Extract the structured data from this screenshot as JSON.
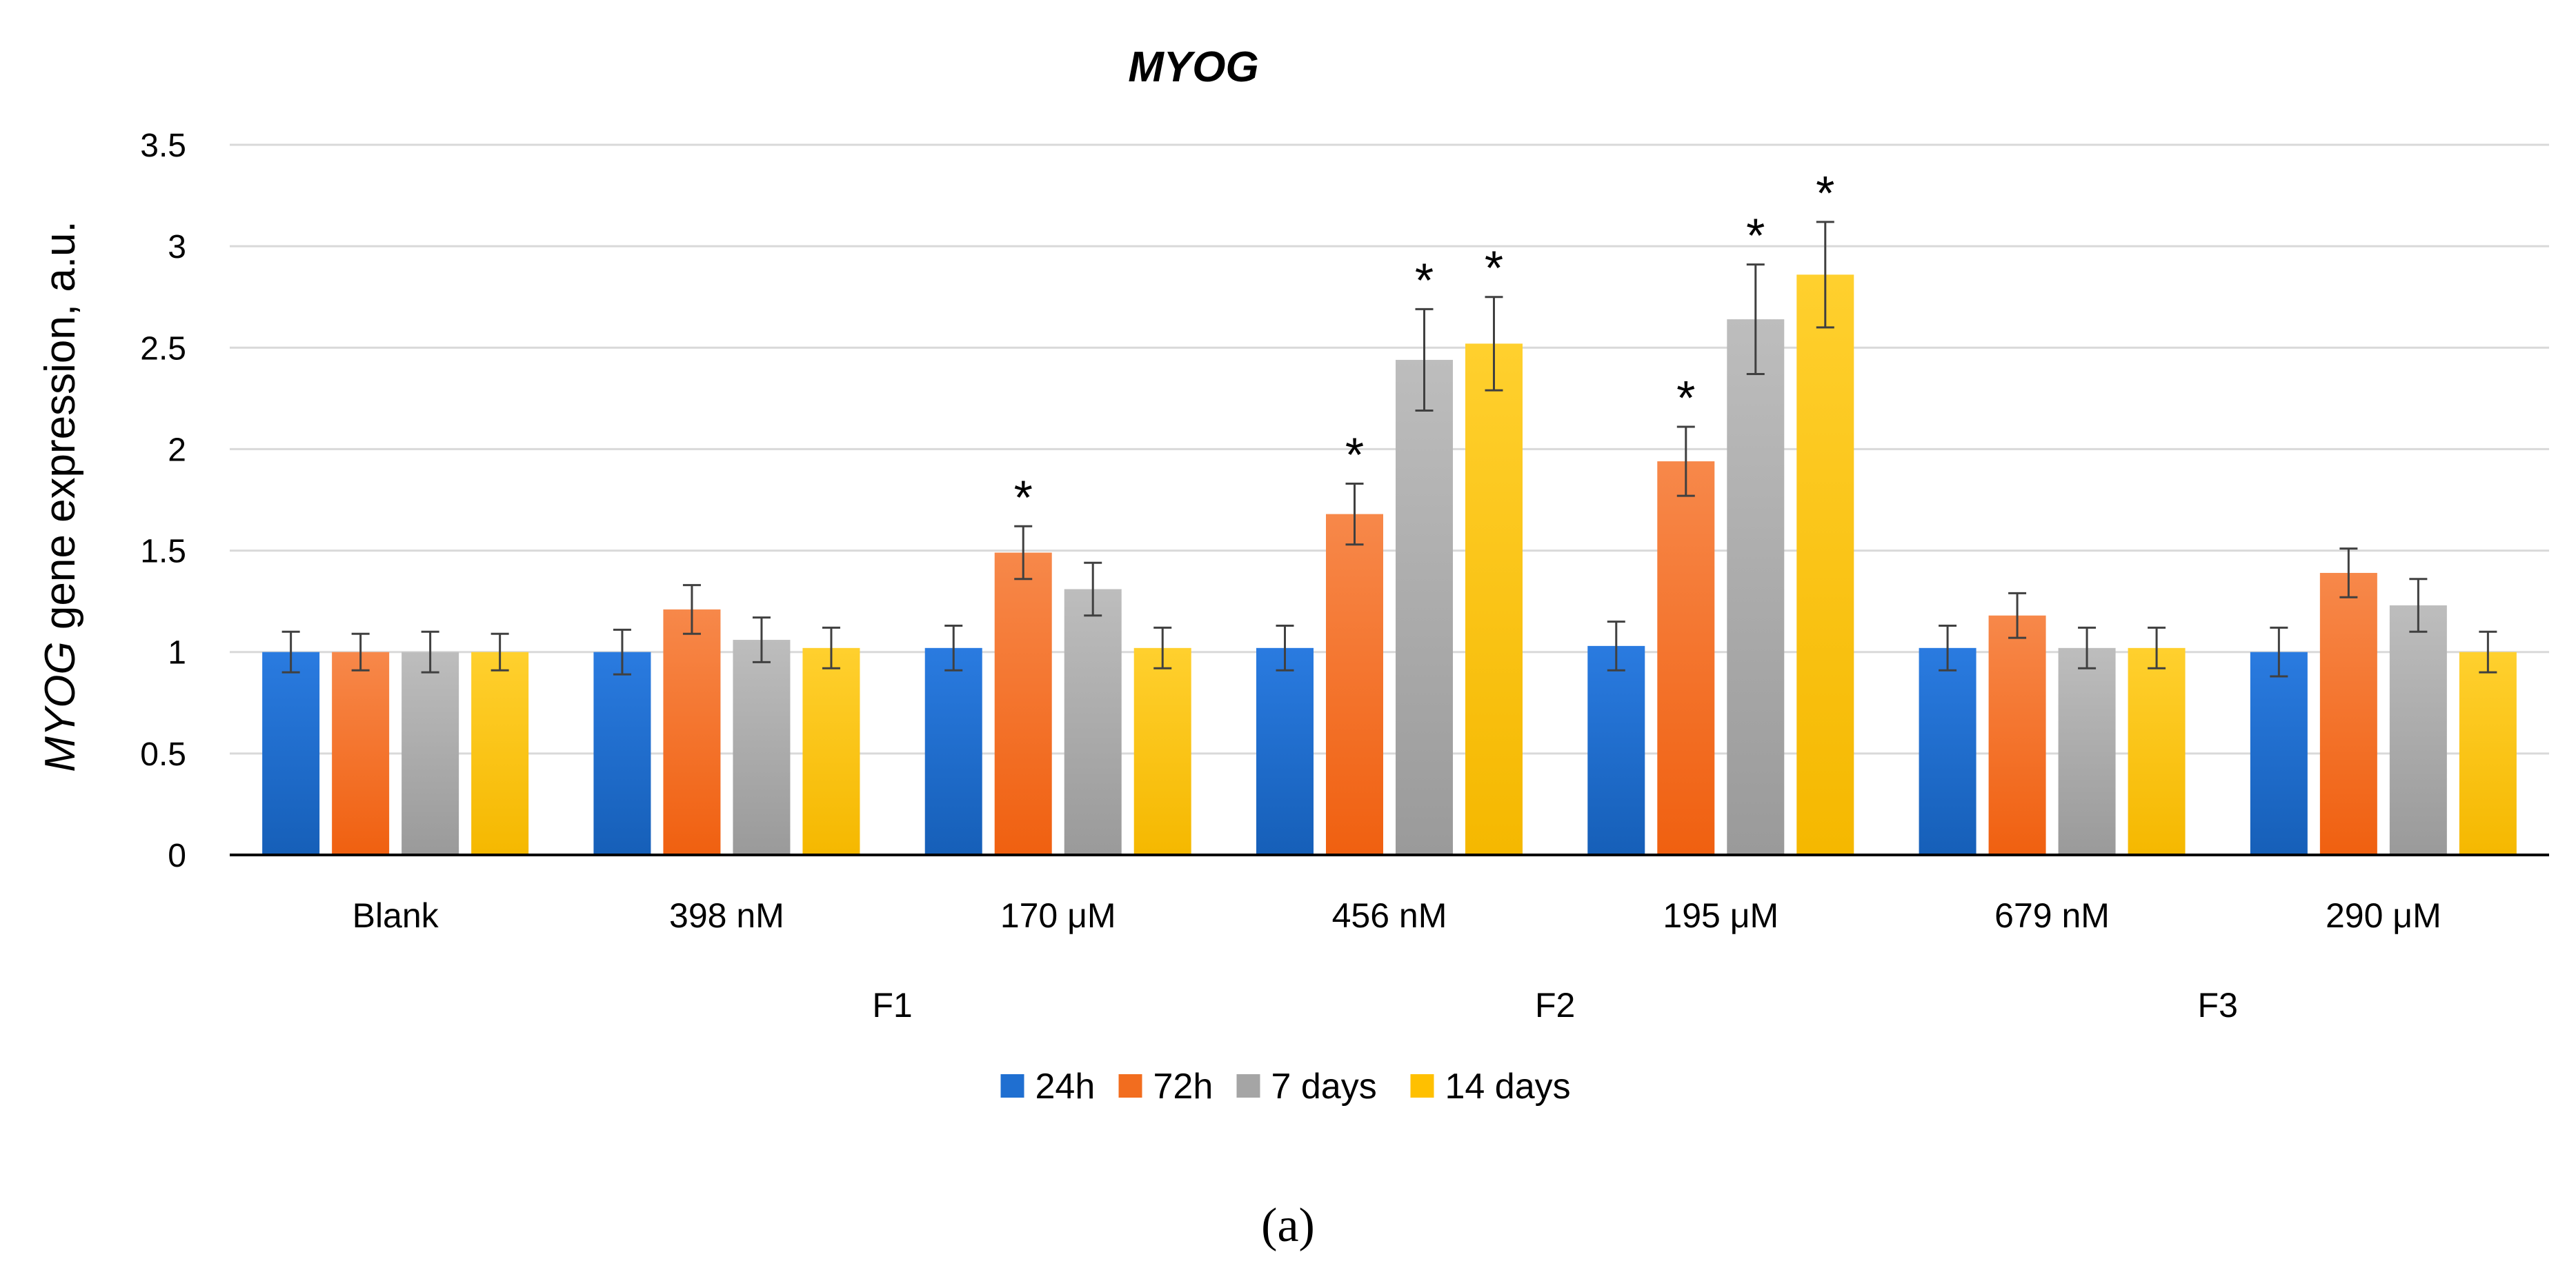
{
  "chart_data": {
    "type": "bar",
    "title": "MYOG",
    "ylabel_italic": "MYOG",
    "ylabel_rest": " gene expression, a.u.",
    "xlabel": "",
    "ylim": [
      0,
      3.5
    ],
    "yticks": [
      0,
      0.5,
      1,
      1.5,
      2,
      2.5,
      3,
      3.5
    ],
    "ytick_labels": [
      "0",
      "0.5",
      "1",
      "1.5",
      "2",
      "2.5",
      "3",
      "3.5"
    ],
    "categories": [
      "Blank",
      "398 nM",
      "170   μM",
      "456 nM",
      "195  μM",
      "679 nM",
      "290  μM"
    ],
    "groups": [
      {
        "label": "F1",
        "from": 1,
        "to": 2
      },
      {
        "label": "F2",
        "from": 3,
        "to": 4
      },
      {
        "label": "F3",
        "from": 5,
        "to": 6
      }
    ],
    "legend_position": "bottom",
    "grid": true,
    "series": [
      {
        "name": "24h",
        "color": "#1f6fd1",
        "values": [
          1.0,
          1.0,
          1.02,
          1.02,
          1.03,
          1.02,
          1.0
        ],
        "errors": [
          0.1,
          0.11,
          0.11,
          0.11,
          0.12,
          0.11,
          0.12
        ],
        "significant": [
          false,
          false,
          false,
          false,
          false,
          false,
          false
        ]
      },
      {
        "name": "72h",
        "color": "#f26d1f",
        "values": [
          1.0,
          1.21,
          1.49,
          1.68,
          1.94,
          1.18,
          1.39
        ],
        "errors": [
          0.09,
          0.12,
          0.13,
          0.15,
          0.17,
          0.11,
          0.12
        ],
        "significant": [
          false,
          false,
          true,
          true,
          true,
          false,
          false
        ]
      },
      {
        "name": "7 days",
        "color": "#a5a5a5",
        "values": [
          1.0,
          1.06,
          1.31,
          2.44,
          2.64,
          1.02,
          1.23
        ],
        "errors": [
          0.1,
          0.11,
          0.13,
          0.25,
          0.27,
          0.1,
          0.13
        ],
        "significant": [
          false,
          false,
          false,
          true,
          true,
          false,
          false
        ]
      },
      {
        "name": "14 days",
        "color": "#ffc000",
        "values": [
          1.0,
          1.02,
          1.02,
          2.52,
          2.86,
          1.02,
          1.0
        ],
        "errors": [
          0.09,
          0.1,
          0.1,
          0.23,
          0.26,
          0.1,
          0.1
        ],
        "significant": [
          false,
          false,
          false,
          true,
          true,
          false,
          false
        ]
      }
    ],
    "significance_marker": "*"
  },
  "caption": "(a)"
}
